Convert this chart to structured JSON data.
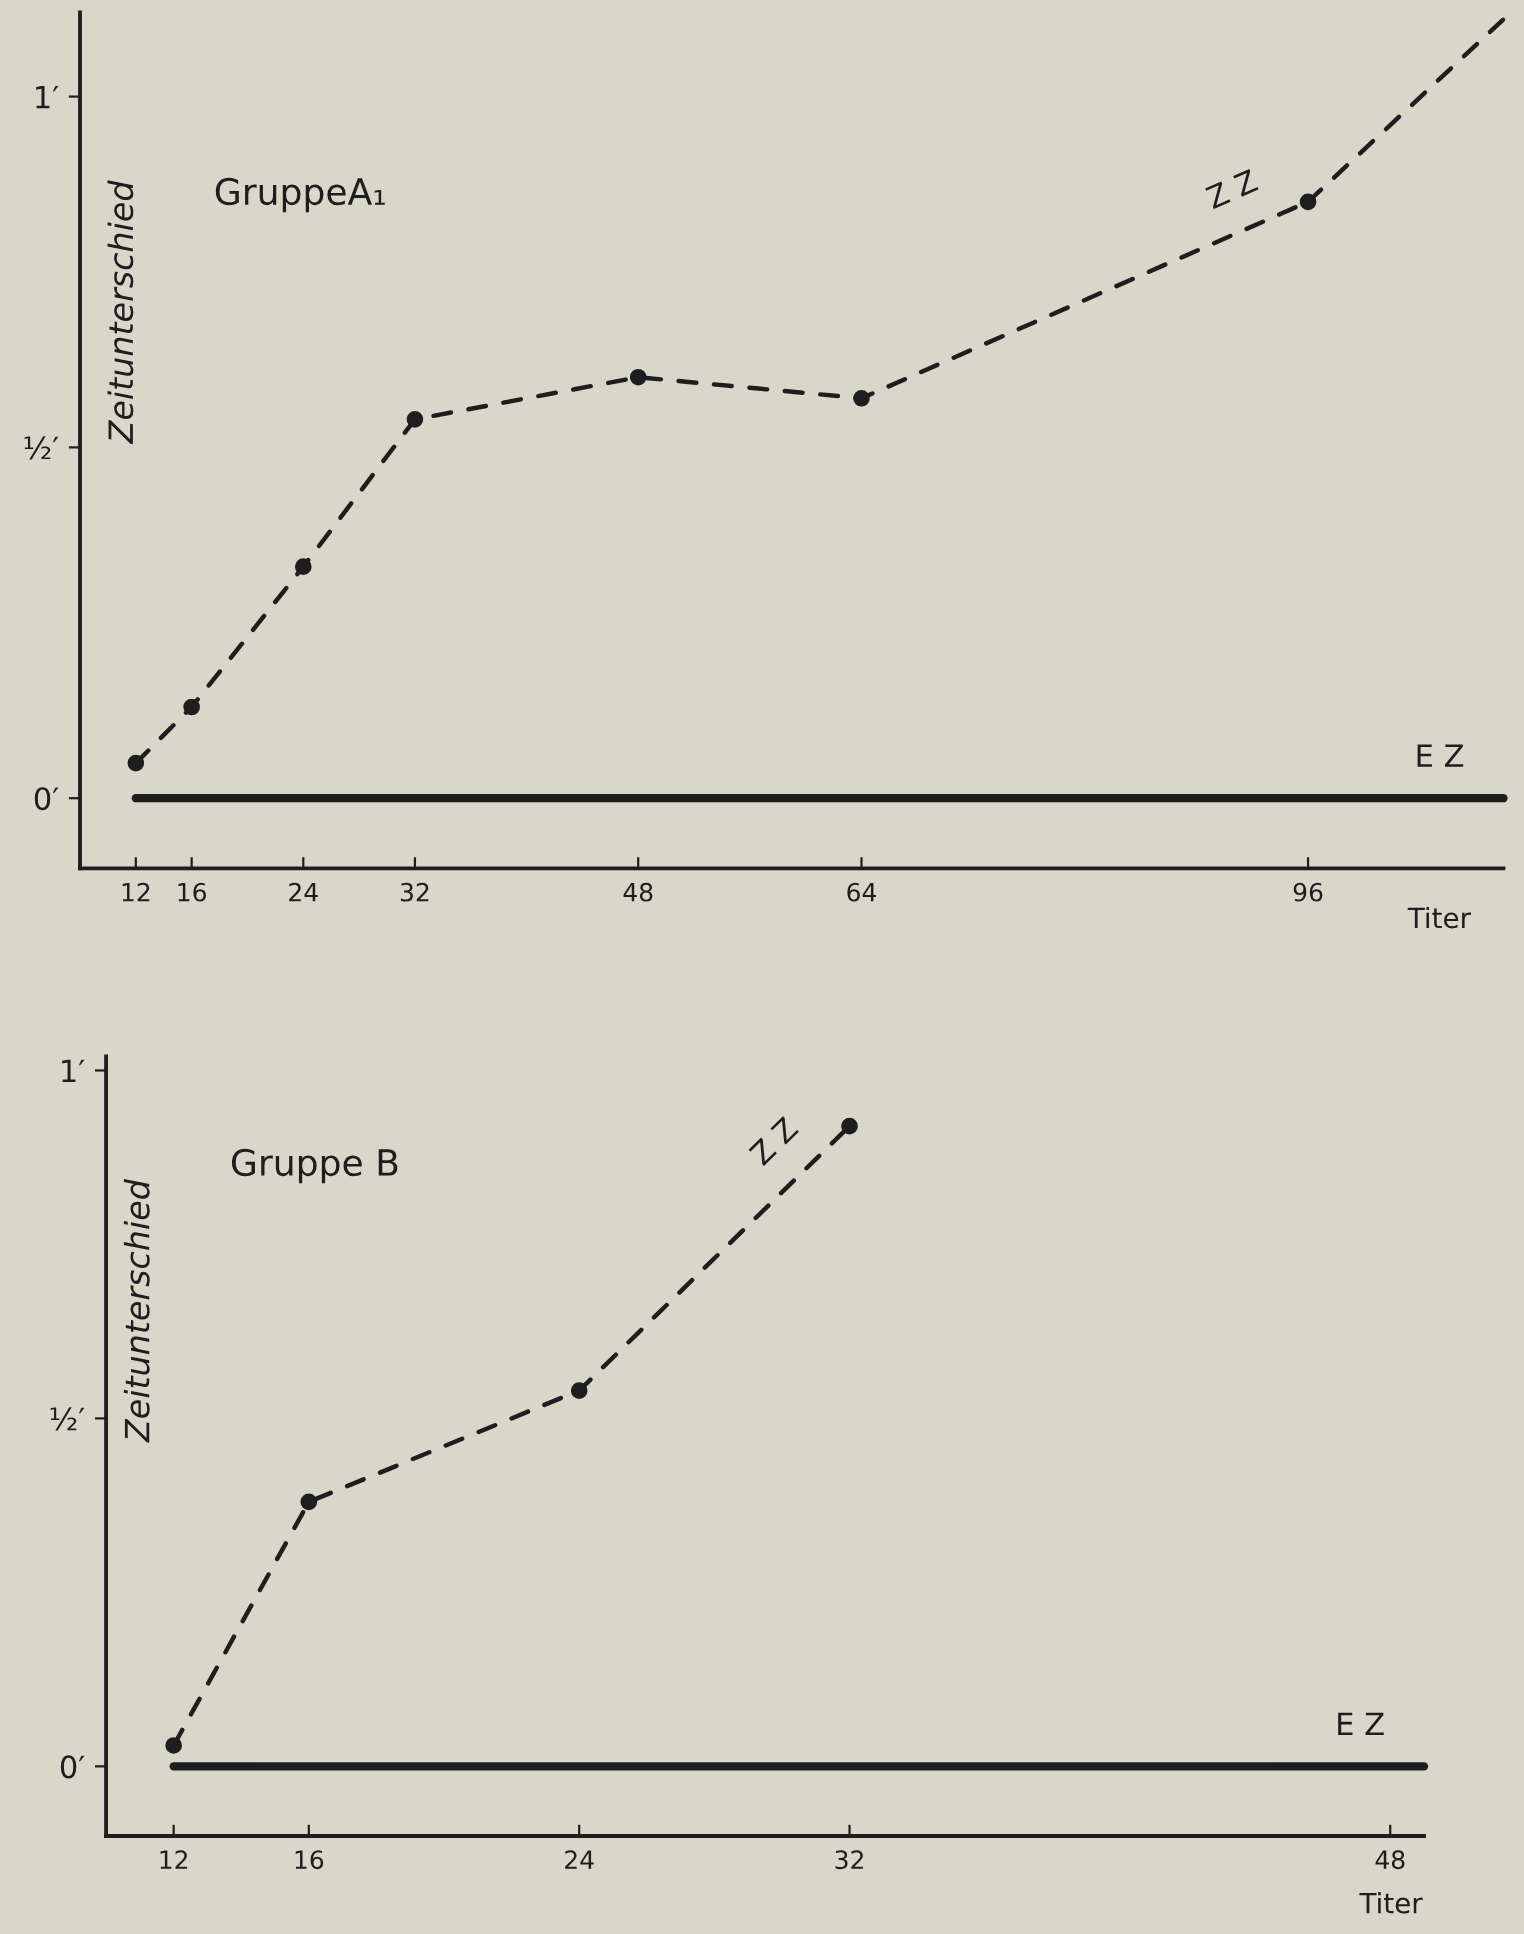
{
  "chart_data": [
    {
      "type": "line",
      "title": "GruppeA₁",
      "ylabel": "Zeitunterschied",
      "xlabel": "Titer",
      "xlim": [
        8,
        110
      ],
      "xticks": [
        12,
        16,
        24,
        32,
        48,
        64,
        96
      ],
      "ylim": [
        -0.1,
        1.12
      ],
      "yticks": [
        {
          "value": 0,
          "label": "0′"
        },
        {
          "value": 0.5,
          "label": "½′"
        },
        {
          "value": 1,
          "label": "1′"
        }
      ],
      "series": [
        {
          "name": "Z Z",
          "color": "#1e1e1e",
          "x": [
            12,
            16,
            24,
            32,
            48,
            64,
            96
          ],
          "values": [
            0.05,
            0.13,
            0.33,
            0.54,
            0.6,
            0.57,
            0.85
          ],
          "line_style": "dashed",
          "marker": "circle"
        },
        {
          "color": "#1e1e1e",
          "x": [
            96,
            110
          ],
          "values": [
            0.85,
            1.11
          ],
          "line_style": "dashed",
          "marker": "none"
        },
        {
          "name": "E Z",
          "color": "#1e1e1e",
          "x": [
            12,
            110
          ],
          "values": [
            0,
            0
          ],
          "line_style": "solid",
          "marker": "none"
        }
      ]
    },
    {
      "type": "line",
      "title": "Gruppe B",
      "ylabel": "Zeitunterschied",
      "xlabel": "Titer",
      "xlim": [
        10,
        49
      ],
      "xticks": [
        12,
        16,
        24,
        32,
        48
      ],
      "ylim": [
        -0.1,
        1.02
      ],
      "yticks": [
        {
          "value": 0,
          "label": "0′"
        },
        {
          "value": 0.5,
          "label": "½′"
        },
        {
          "value": 1,
          "label": "1′"
        }
      ],
      "series": [
        {
          "name": "Z Z",
          "color": "#1e1e1e",
          "x": [
            12,
            16,
            24,
            32
          ],
          "values": [
            0.03,
            0.38,
            0.54,
            0.92
          ],
          "line_style": "dashed",
          "marker": "circle"
        },
        {
          "name": "E Z",
          "color": "#1e1e1e",
          "x": [
            12,
            49
          ],
          "values": [
            0,
            0
          ],
          "line_style": "solid",
          "marker": "none"
        }
      ]
    }
  ]
}
